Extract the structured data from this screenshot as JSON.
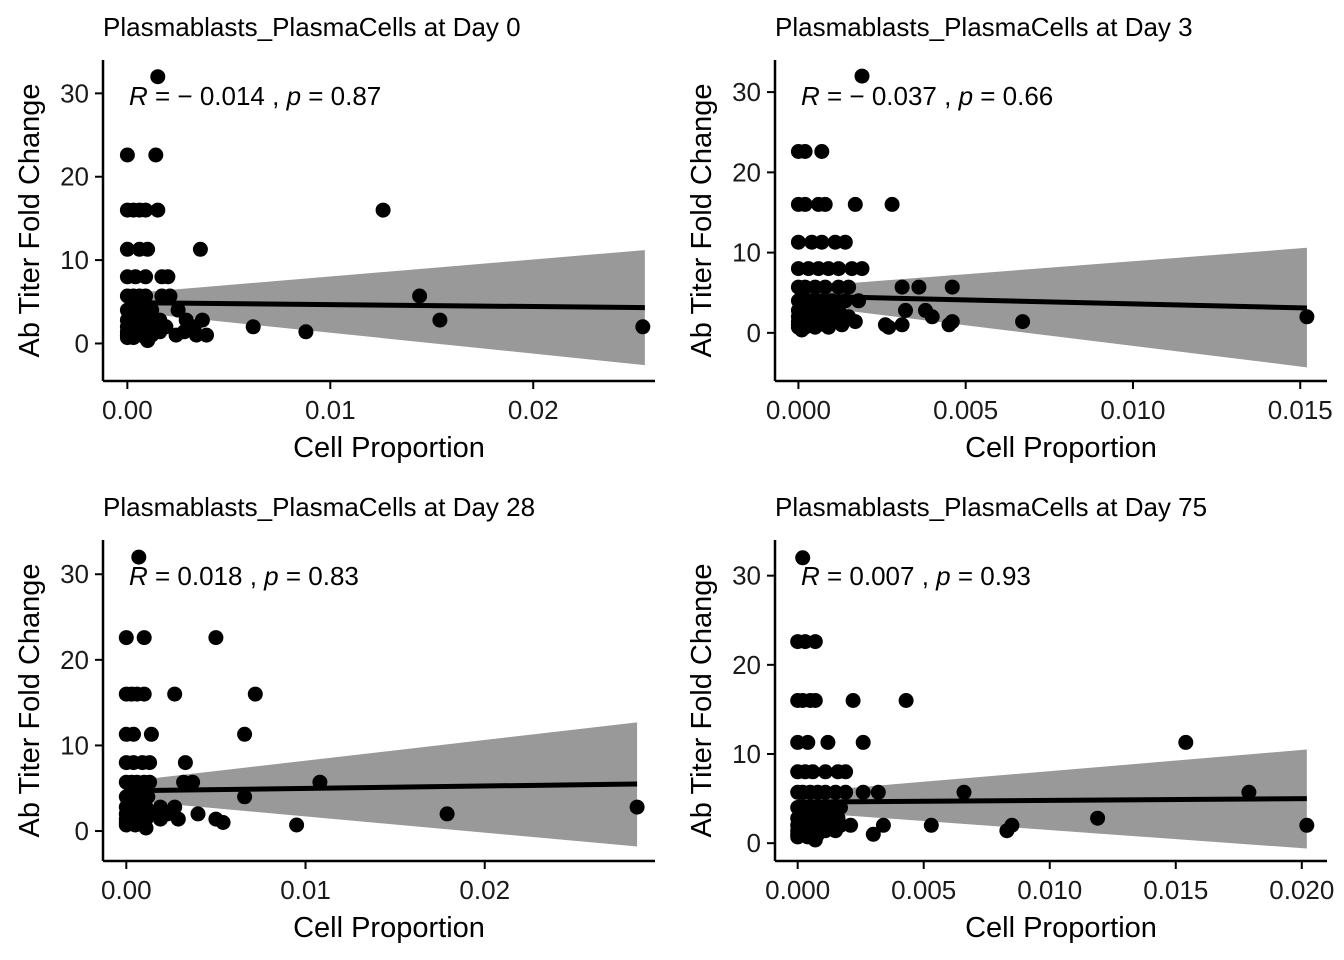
{
  "chart_data": [
    {
      "type": "scatter",
      "title": "Plasmablasts_PlasmaCells at Day 0",
      "xlabel": "Cell Proportion",
      "ylabel": "Ab Titer Fold Change",
      "stat": {
        "r_label": "R",
        "r_text": " = − 0.014 , ",
        "p_label": "p",
        "p_text": " = 0.87"
      },
      "xlim": [
        -0.0012,
        0.026
      ],
      "ylim": [
        -4.5,
        34
      ],
      "xticks": [
        0,
        0.01,
        0.02
      ],
      "xtick_labels": [
        "0.00",
        "0.01",
        "0.02"
      ],
      "yticks": [
        0,
        10,
        20,
        30
      ],
      "ytick_labels": [
        "0",
        "10",
        "20",
        "30"
      ],
      "fit": {
        "x": [
          0,
          0.0255
        ],
        "y": [
          4.9,
          4.3
        ]
      },
      "band": {
        "x": [
          0,
          0.0255
        ],
        "upper": [
          6.0,
          11.2
        ],
        "lower": [
          3.8,
          -2.6
        ]
      },
      "points": [
        [
          0.0015,
          32
        ],
        [
          0,
          22.6
        ],
        [
          0.0014,
          22.6
        ],
        [
          0,
          16
        ],
        [
          0.0003,
          16
        ],
        [
          0.0006,
          16
        ],
        [
          0.0009,
          16
        ],
        [
          0.0015,
          16
        ],
        [
          0.0126,
          16
        ],
        [
          0,
          11.3
        ],
        [
          0.0006,
          11.3
        ],
        [
          0.001,
          11.3
        ],
        [
          0.0036,
          11.3
        ],
        [
          0,
          8
        ],
        [
          0.0004,
          8
        ],
        [
          0.0009,
          8
        ],
        [
          0.0017,
          8
        ],
        [
          0.002,
          8
        ],
        [
          0,
          5.7
        ],
        [
          0.0003,
          5.7
        ],
        [
          0.0006,
          5.7
        ],
        [
          0.0009,
          5.7
        ],
        [
          0.0017,
          5.7
        ],
        [
          0.0021,
          5.7
        ],
        [
          0.0144,
          5.7
        ],
        [
          0,
          4
        ],
        [
          0.0004,
          4
        ],
        [
          0.0008,
          4
        ],
        [
          0.0012,
          4
        ],
        [
          0.0025,
          4
        ],
        [
          0,
          2.8
        ],
        [
          0.0005,
          2.8
        ],
        [
          0.001,
          2.8
        ],
        [
          0.0016,
          2.8
        ],
        [
          0.0029,
          2.8
        ],
        [
          0.0037,
          2.8
        ],
        [
          0.0154,
          2.8
        ],
        [
          0,
          2
        ],
        [
          0.0006,
          2
        ],
        [
          0.0011,
          2
        ],
        [
          0.0019,
          2
        ],
        [
          0.0033,
          2
        ],
        [
          0.0062,
          2
        ],
        [
          0.0254,
          2
        ],
        [
          0,
          1.4
        ],
        [
          0.0004,
          1.4
        ],
        [
          0.0009,
          1.4
        ],
        [
          0.0016,
          1.4
        ],
        [
          0.0028,
          1.4
        ],
        [
          0.0088,
          1.4
        ],
        [
          0,
          1
        ],
        [
          0.0007,
          1
        ],
        [
          0.0012,
          1
        ],
        [
          0.0024,
          1
        ],
        [
          0.0034,
          1
        ],
        [
          0.0039,
          1
        ],
        [
          0,
          0.7
        ],
        [
          0.0003,
          0.7
        ],
        [
          0.0009,
          0.7
        ],
        [
          0.001,
          0.35
        ]
      ]
    },
    {
      "type": "scatter",
      "title": "Plasmablasts_PlasmaCells at Day 3",
      "xlabel": "Cell Proportion",
      "ylabel": "Ab Titer Fold Change",
      "stat": {
        "r_label": "R",
        "r_text": " = − 0.037 , ",
        "p_label": "p",
        "p_text": " = 0.66"
      },
      "xlim": [
        -0.0007,
        0.0158
      ],
      "ylim": [
        -6,
        34
      ],
      "xticks": [
        0,
        0.005,
        0.01,
        0.015
      ],
      "xtick_labels": [
        "0.000",
        "0.005",
        "0.010",
        "0.015"
      ],
      "yticks": [
        0,
        10,
        20,
        30
      ],
      "ytick_labels": [
        "0",
        "10",
        "20",
        "30"
      ],
      "fit": {
        "x": [
          0,
          0.0152
        ],
        "y": [
          4.6,
          3.1
        ]
      },
      "band": {
        "x": [
          0,
          0.0152
        ],
        "upper": [
          5.7,
          10.6
        ],
        "lower": [
          3.5,
          -4.3
        ]
      },
      "points": [
        [
          0.0019,
          32
        ],
        [
          0,
          22.6
        ],
        [
          0.0002,
          22.6
        ],
        [
          0.0007,
          22.6
        ],
        [
          0,
          16
        ],
        [
          0.0002,
          16
        ],
        [
          0.0006,
          16
        ],
        [
          0.0008,
          16
        ],
        [
          0.0017,
          16
        ],
        [
          0.0028,
          16
        ],
        [
          0,
          11.3
        ],
        [
          0.0004,
          11.3
        ],
        [
          0.0007,
          11.3
        ],
        [
          0.0011,
          11.3
        ],
        [
          0.0014,
          11.3
        ],
        [
          0,
          8
        ],
        [
          0.0003,
          8
        ],
        [
          0.0006,
          8
        ],
        [
          0.0009,
          8
        ],
        [
          0.0012,
          8
        ],
        [
          0.0016,
          8
        ],
        [
          0.0019,
          8
        ],
        [
          0,
          5.7
        ],
        [
          0.0002,
          5.7
        ],
        [
          0.0005,
          5.7
        ],
        [
          0.0008,
          5.7
        ],
        [
          0.0012,
          5.7
        ],
        [
          0.0015,
          5.7
        ],
        [
          0.0031,
          5.7
        ],
        [
          0.0036,
          5.7
        ],
        [
          0.0046,
          5.7
        ],
        [
          0,
          4
        ],
        [
          0.0003,
          4
        ],
        [
          0.0006,
          4
        ],
        [
          0.001,
          4
        ],
        [
          0.0014,
          4
        ],
        [
          0.0018,
          4
        ],
        [
          0,
          2.8
        ],
        [
          0.0003,
          2.8
        ],
        [
          0.0005,
          2.8
        ],
        [
          0.0008,
          2.8
        ],
        [
          0.0012,
          2.8
        ],
        [
          0.0032,
          2.8
        ],
        [
          0.0038,
          2.8
        ],
        [
          0,
          2
        ],
        [
          0.0002,
          2
        ],
        [
          0.0005,
          2
        ],
        [
          0.0008,
          2
        ],
        [
          0.0011,
          2
        ],
        [
          0.0015,
          2
        ],
        [
          0.004,
          2
        ],
        [
          0,
          1.4
        ],
        [
          0.0003,
          1.4
        ],
        [
          0.0006,
          1.4
        ],
        [
          0.001,
          1.4
        ],
        [
          0.0017,
          1.4
        ],
        [
          0.0046,
          1.4
        ],
        [
          0.0067,
          1.4
        ],
        [
          0.0152,
          2
        ],
        [
          0,
          1
        ],
        [
          0.0004,
          1
        ],
        [
          0.0008,
          1
        ],
        [
          0.0013,
          1
        ],
        [
          0.0026,
          1
        ],
        [
          0.0031,
          1
        ],
        [
          0.0045,
          1
        ],
        [
          0,
          0.7
        ],
        [
          0.0002,
          0.7
        ],
        [
          0.0005,
          0.7
        ],
        [
          0.0009,
          0.7
        ],
        [
          0.0027,
          0.7
        ],
        [
          0.0001,
          0.35
        ]
      ]
    },
    {
      "type": "scatter",
      "title": "Plasmablasts_PlasmaCells at Day 28",
      "xlabel": "Cell Proportion",
      "ylabel": "Ab Titer Fold Change",
      "stat": {
        "r_label": "R",
        "r_text": " = 0.018 , ",
        "p_label": "p",
        "p_text": " = 0.83"
      },
      "xlim": [
        -0.0013,
        0.0295
      ],
      "ylim": [
        -3.5,
        34
      ],
      "xticks": [
        0,
        0.01,
        0.02
      ],
      "xtick_labels": [
        "0.00",
        "0.01",
        "0.02"
      ],
      "yticks": [
        0,
        10,
        20,
        30
      ],
      "ytick_labels": [
        "0",
        "10",
        "20",
        "30"
      ],
      "fit": {
        "x": [
          0,
          0.0285
        ],
        "y": [
          4.7,
          5.5
        ]
      },
      "band": {
        "x": [
          0,
          0.0285
        ],
        "upper": [
          5.8,
          12.7
        ],
        "lower": [
          3.6,
          -1.8
        ]
      },
      "points": [
        [
          0.0007,
          32
        ],
        [
          0,
          22.6
        ],
        [
          0.001,
          22.6
        ],
        [
          0.005,
          22.6
        ],
        [
          0,
          16
        ],
        [
          0.0003,
          16
        ],
        [
          0.0006,
          16
        ],
        [
          0.001,
          16
        ],
        [
          0.0027,
          16
        ],
        [
          0.0072,
          16
        ],
        [
          0,
          11.3
        ],
        [
          0.0004,
          11.3
        ],
        [
          0.0014,
          11.3
        ],
        [
          0.0066,
          11.3
        ],
        [
          0,
          8
        ],
        [
          0.0004,
          8
        ],
        [
          0.0009,
          8
        ],
        [
          0.0013,
          8
        ],
        [
          0.0033,
          8
        ],
        [
          0,
          5.7
        ],
        [
          0.0003,
          5.7
        ],
        [
          0.0006,
          5.7
        ],
        [
          0.001,
          5.7
        ],
        [
          0.0013,
          5.7
        ],
        [
          0.0032,
          5.7
        ],
        [
          0.0037,
          5.7
        ],
        [
          0.0108,
          5.7
        ],
        [
          0,
          4
        ],
        [
          0.0004,
          4
        ],
        [
          0.0008,
          4
        ],
        [
          0.0012,
          4
        ],
        [
          0.0066,
          4
        ],
        [
          0,
          2.8
        ],
        [
          0.0003,
          2.8
        ],
        [
          0.0007,
          2.8
        ],
        [
          0.0011,
          2.8
        ],
        [
          0.0019,
          2.8
        ],
        [
          0.0027,
          2.8
        ],
        [
          0.0285,
          2.8
        ],
        [
          0,
          2
        ],
        [
          0.0004,
          2
        ],
        [
          0.0008,
          2
        ],
        [
          0.0014,
          2
        ],
        [
          0.0023,
          2
        ],
        [
          0.004,
          2
        ],
        [
          0.0179,
          2
        ],
        [
          0,
          1.4
        ],
        [
          0.0005,
          1.4
        ],
        [
          0.0011,
          1.4
        ],
        [
          0.0019,
          1.4
        ],
        [
          0.0029,
          1.4
        ],
        [
          0.005,
          1.4
        ],
        [
          0,
          1
        ],
        [
          0.0003,
          1
        ],
        [
          0.0008,
          1
        ],
        [
          0.0054,
          1
        ],
        [
          0.0095,
          0.7
        ],
        [
          0,
          0.7
        ],
        [
          0.0005,
          0.7
        ],
        [
          0.0011,
          0.35
        ]
      ]
    },
    {
      "type": "scatter",
      "title": "Plasmablasts_PlasmaCells at Day 75",
      "xlabel": "Cell Proportion",
      "ylabel": "Ab Titer Fold Change",
      "stat": {
        "r_label": "R",
        "r_text": " = 0.007 , ",
        "p_label": "p",
        "p_text": " = 0.93"
      },
      "xlim": [
        -0.0009,
        0.021
      ],
      "ylim": [
        -2,
        34
      ],
      "xticks": [
        0,
        0.005,
        0.01,
        0.015,
        0.02
      ],
      "xtick_labels": [
        "0.000",
        "0.005",
        "0.010",
        "0.015",
        "0.020"
      ],
      "yticks": [
        0,
        10,
        20,
        30
      ],
      "ytick_labels": [
        "0",
        "10",
        "20",
        "30"
      ],
      "fit": {
        "x": [
          0,
          0.0202
        ],
        "y": [
          4.6,
          5.0
        ]
      },
      "band": {
        "x": [
          0,
          0.0202
        ],
        "upper": [
          5.7,
          10.5
        ],
        "lower": [
          3.5,
          -0.6
        ]
      },
      "points": [
        [
          0.0002,
          32
        ],
        [
          0,
          22.6
        ],
        [
          0.0003,
          22.6
        ],
        [
          0.0007,
          22.6
        ],
        [
          0,
          16
        ],
        [
          0.0002,
          16
        ],
        [
          0.0005,
          16
        ],
        [
          0.0007,
          16
        ],
        [
          0.0022,
          16
        ],
        [
          0.0043,
          16
        ],
        [
          0,
          11.3
        ],
        [
          0.0004,
          11.3
        ],
        [
          0.0012,
          11.3
        ],
        [
          0.0026,
          11.3
        ],
        [
          0.0154,
          11.3
        ],
        [
          0,
          8
        ],
        [
          0.0003,
          8
        ],
        [
          0.0006,
          8
        ],
        [
          0.0011,
          8
        ],
        [
          0.0016,
          8
        ],
        [
          0.0019,
          8
        ],
        [
          0,
          5.7
        ],
        [
          0.0002,
          5.7
        ],
        [
          0.0005,
          5.7
        ],
        [
          0.0008,
          5.7
        ],
        [
          0.0011,
          5.7
        ],
        [
          0.0015,
          5.7
        ],
        [
          0.0019,
          5.7
        ],
        [
          0.0026,
          5.7
        ],
        [
          0.0032,
          5.7
        ],
        [
          0.0066,
          5.7
        ],
        [
          0.0179,
          5.7
        ],
        [
          0,
          4
        ],
        [
          0.0003,
          4
        ],
        [
          0.0006,
          4
        ],
        [
          0.0009,
          4
        ],
        [
          0.0013,
          4
        ],
        [
          0.0017,
          4
        ],
        [
          0,
          2.8
        ],
        [
          0.0003,
          2.8
        ],
        [
          0.0006,
          2.8
        ],
        [
          0.0009,
          2.8
        ],
        [
          0.0012,
          2.8
        ],
        [
          0.0016,
          2.8
        ],
        [
          0.0119,
          2.8
        ],
        [
          0,
          2
        ],
        [
          0.0003,
          2
        ],
        [
          0.0006,
          2
        ],
        [
          0.0009,
          2
        ],
        [
          0.0013,
          2
        ],
        [
          0.0017,
          2
        ],
        [
          0.0021,
          2
        ],
        [
          0.0034,
          2
        ],
        [
          0.0053,
          2
        ],
        [
          0.0085,
          2
        ],
        [
          0.0202,
          2
        ],
        [
          0,
          1.4
        ],
        [
          0.0003,
          1.4
        ],
        [
          0.0007,
          1.4
        ],
        [
          0.0011,
          1.4
        ],
        [
          0.0015,
          1.4
        ],
        [
          0.0083,
          1.4
        ],
        [
          0,
          1
        ],
        [
          0.0004,
          1
        ],
        [
          0.0008,
          1
        ],
        [
          0.003,
          1
        ],
        [
          0,
          0.7
        ],
        [
          0.0004,
          0.7
        ],
        [
          0.0007,
          0.35
        ]
      ]
    }
  ]
}
